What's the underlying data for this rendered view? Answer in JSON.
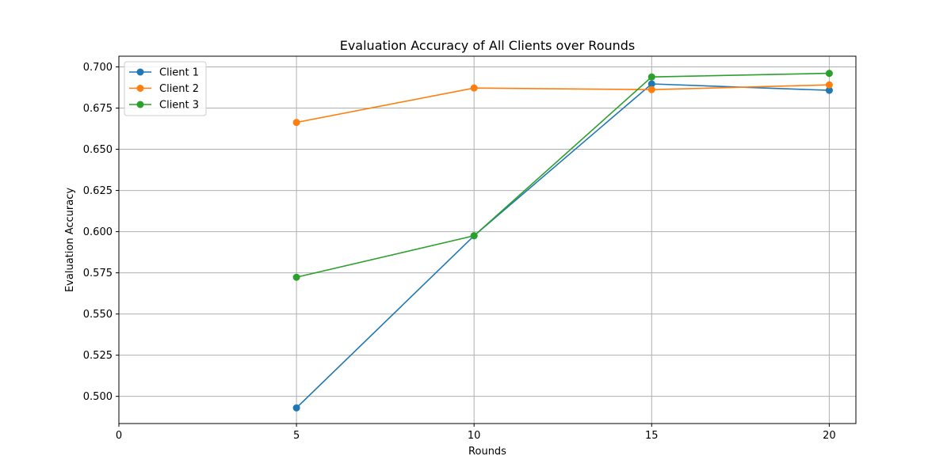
{
  "chart_data": {
    "type": "line",
    "title": "Evaluation Accuracy of All Clients over Rounds",
    "xlabel": "Rounds",
    "ylabel": "Evaluation Accuracy",
    "x": [
      5,
      10,
      15,
      20
    ],
    "xlim": [
      0,
      20.75
    ],
    "ylim": [
      0.4835,
      0.7065
    ],
    "xticks": [
      0,
      5,
      10,
      15,
      20
    ],
    "xtick_labels": [
      "0",
      "5",
      "10",
      "15",
      "20"
    ],
    "yticks": [
      0.5,
      0.525,
      0.55,
      0.575,
      0.6,
      0.625,
      0.65,
      0.675,
      0.7
    ],
    "ytick_labels": [
      "0.500",
      "0.525",
      "0.550",
      "0.575",
      "0.600",
      "0.625",
      "0.650",
      "0.675",
      "0.700"
    ],
    "grid": true,
    "legend_position": "top-left",
    "series": [
      {
        "name": "Client 1",
        "color": "#1f77b4",
        "values": [
          0.493,
          0.5975,
          0.6897,
          0.6858
        ]
      },
      {
        "name": "Client 2",
        "color": "#ff7f0e",
        "values": [
          0.6663,
          0.6872,
          0.6862,
          0.6891
        ]
      },
      {
        "name": "Client 3",
        "color": "#2ca02c",
        "values": [
          0.5723,
          0.5975,
          0.6939,
          0.6961
        ]
      }
    ]
  }
}
